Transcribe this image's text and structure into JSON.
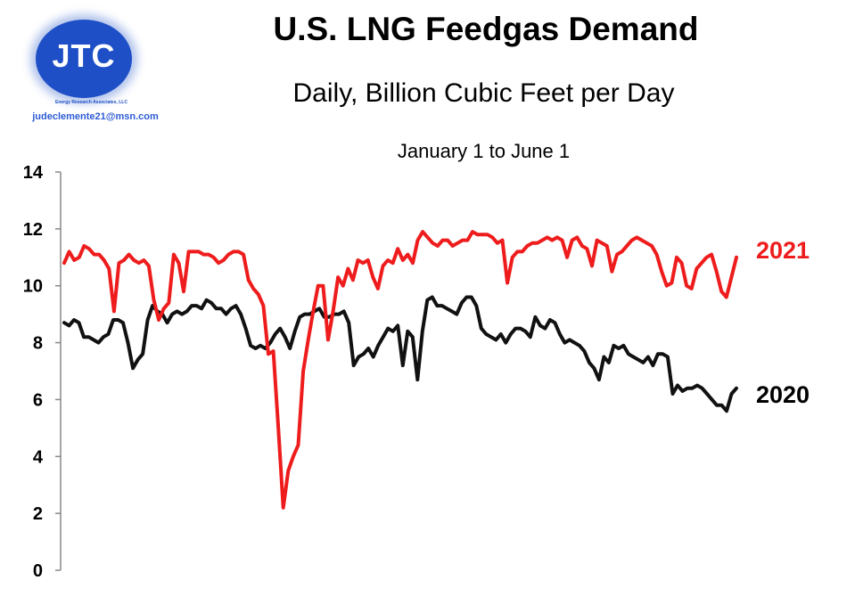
{
  "header": {
    "title": "U.S. LNG Feedgas Demand",
    "subtitle": "Daily, Billion Cubic Feet per Day",
    "date_range": "January 1 to June 1"
  },
  "logo": {
    "letters": "JTC",
    "company": "Energy Research Associates, LLC",
    "email": "judeclemente21@msn.com",
    "color": "#1e4fc7"
  },
  "chart_data": {
    "type": "line",
    "title": "U.S. LNG Feedgas Demand",
    "subtitle": "Daily, Billion Cubic Feet per Day",
    "xlabel": "January 1 to June 1",
    "ylabel": "",
    "ylim": [
      0,
      14
    ],
    "yticks": [
      "0",
      "2",
      "4",
      "6",
      "8",
      "10",
      "12",
      "14"
    ],
    "grid": false,
    "legend": "inline labels at right end of each series",
    "series": [
      {
        "name": "2021",
        "color": "#ee1c1c",
        "values": [
          10.8,
          11.2,
          10.9,
          11.0,
          11.4,
          11.3,
          11.1,
          11.1,
          10.9,
          10.6,
          9.1,
          10.8,
          10.9,
          11.1,
          10.9,
          10.8,
          10.9,
          10.7,
          9.5,
          8.8,
          9.2,
          9.4,
          11.1,
          10.8,
          9.8,
          11.2,
          11.2,
          11.2,
          11.1,
          11.1,
          11.0,
          10.8,
          10.9,
          11.1,
          11.2,
          11.2,
          11.1,
          10.2,
          9.9,
          9.7,
          9.3,
          7.6,
          7.7,
          5.0,
          2.2,
          3.5,
          4.0,
          4.4,
          7.0,
          8.1,
          9.1,
          10.0,
          10.0,
          8.1,
          9.1,
          10.3,
          10.0,
          10.6,
          10.2,
          10.9,
          10.8,
          10.9,
          10.3,
          9.9,
          10.7,
          10.9,
          10.8,
          11.3,
          10.9,
          11.1,
          10.8,
          11.6,
          11.9,
          11.7,
          11.5,
          11.4,
          11.6,
          11.6,
          11.4,
          11.5,
          11.6,
          11.6,
          11.9,
          11.8,
          11.8,
          11.8,
          11.7,
          11.5,
          11.6,
          10.1,
          11.0,
          11.2,
          11.2,
          11.4,
          11.5,
          11.5,
          11.6,
          11.7,
          11.6,
          11.7,
          11.6,
          11.0,
          11.6,
          11.7,
          11.4,
          11.3,
          10.7,
          11.6,
          11.5,
          11.4,
          10.5,
          11.1,
          11.2,
          11.4,
          11.6,
          11.7,
          11.6,
          11.5,
          11.4,
          11.1,
          10.5,
          10.0,
          10.1,
          11.0,
          10.8,
          10.0,
          9.9,
          10.6,
          10.8,
          11.0,
          11.1,
          10.5,
          9.8,
          9.6,
          10.3,
          11.0
        ]
      },
      {
        "name": "2020",
        "color": "#111111",
        "values": [
          8.7,
          8.6,
          8.8,
          8.7,
          8.2,
          8.2,
          8.1,
          8.0,
          8.2,
          8.3,
          8.8,
          8.8,
          8.7,
          8.0,
          7.1,
          7.4,
          7.6,
          8.8,
          9.3,
          9.1,
          9.0,
          8.7,
          9.0,
          9.1,
          9.0,
          9.1,
          9.3,
          9.3,
          9.2,
          9.5,
          9.4,
          9.2,
          9.2,
          9.0,
          9.2,
          9.3,
          9.0,
          8.5,
          7.9,
          7.8,
          7.9,
          7.8,
          8.0,
          8.3,
          8.5,
          8.2,
          7.8,
          8.4,
          8.9,
          9.0,
          9.0,
          9.1,
          9.2,
          8.9,
          8.9,
          9.0,
          9.0,
          9.1,
          8.7,
          7.2,
          7.5,
          7.6,
          7.8,
          7.5,
          7.9,
          8.2,
          8.5,
          8.4,
          8.6,
          7.2,
          8.4,
          8.2,
          6.7,
          8.4,
          9.5,
          9.6,
          9.3,
          9.3,
          9.2,
          9.1,
          9.0,
          9.4,
          9.6,
          9.6,
          9.3,
          8.5,
          8.3,
          8.2,
          8.1,
          8.3,
          8.0,
          8.3,
          8.5,
          8.5,
          8.4,
          8.2,
          8.9,
          8.6,
          8.5,
          8.8,
          8.7,
          8.3,
          8.0,
          8.1,
          8.0,
          7.9,
          7.7,
          7.3,
          7.1,
          6.7,
          7.5,
          7.3,
          7.9,
          7.8,
          7.9,
          7.6,
          7.5,
          7.4,
          7.3,
          7.5,
          7.2,
          7.6,
          7.6,
          7.5,
          6.2,
          6.5,
          6.3,
          6.4,
          6.4,
          6.5,
          6.4,
          6.2,
          6.0,
          5.8,
          5.8,
          5.6,
          6.2,
          6.4
        ]
      }
    ]
  }
}
